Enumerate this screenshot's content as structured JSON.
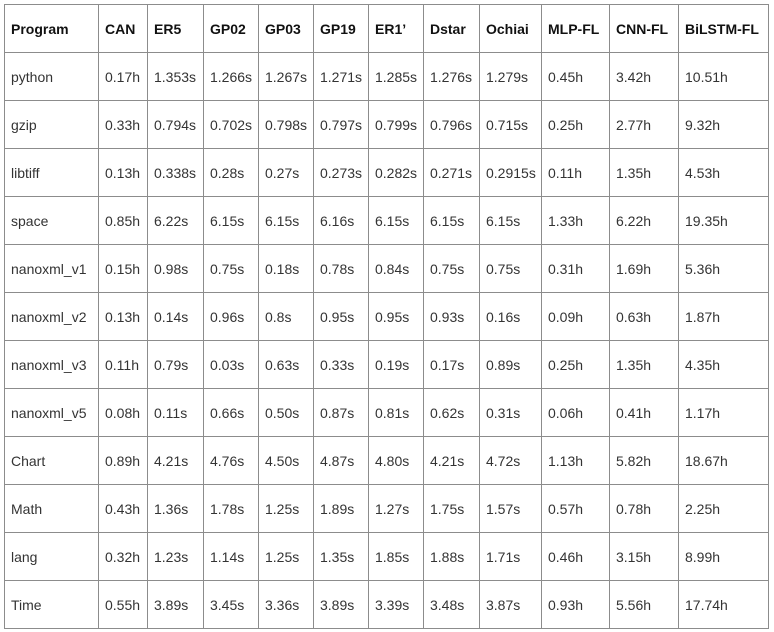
{
  "table": {
    "headers": [
      "Program",
      "CAN",
      "ER5",
      "GP02",
      "GP03",
      "GP19",
      "ER1’",
      "Dstar",
      "Ochiai",
      "MLP-FL",
      "CNN-FL",
      "BiLSTM-FL"
    ],
    "rows": [
      [
        "python",
        "0.17h",
        "1.353s",
        "1.266s",
        "1.267s",
        "1.271s",
        "1.285s",
        "1.276s",
        "1.279s",
        "0.45h",
        "3.42h",
        "10.51h"
      ],
      [
        "gzip",
        "0.33h",
        "0.794s",
        "0.702s",
        "0.798s",
        "0.797s",
        "0.799s",
        "0.796s",
        "0.715s",
        "0.25h",
        "2.77h",
        "9.32h"
      ],
      [
        "libtiff",
        "0.13h",
        "0.338s",
        "0.28s",
        "0.27s",
        "0.273s",
        "0.282s",
        "0.271s",
        "0.2915s",
        "0.11h",
        "1.35h",
        "4.53h"
      ],
      [
        "space",
        "0.85h",
        "6.22s",
        "6.15s",
        "6.15s",
        "6.16s",
        "6.15s",
        "6.15s",
        "6.15s",
        "1.33h",
        "6.22h",
        "19.35h"
      ],
      [
        "nanoxml_v1",
        "0.15h",
        "0.98s",
        "0.75s",
        "0.18s",
        "0.78s",
        "0.84s",
        "0.75s",
        "0.75s",
        "0.31h",
        "1.69h",
        "5.36h"
      ],
      [
        "nanoxml_v2",
        "0.13h",
        "0.14s",
        "0.96s",
        "0.8s",
        "0.95s",
        "0.95s",
        "0.93s",
        "0.16s",
        "0.09h",
        "0.63h",
        "1.87h"
      ],
      [
        "nanoxml_v3",
        "0.11h",
        "0.79s",
        "0.03s",
        "0.63s",
        "0.33s",
        "0.19s",
        "0.17s",
        "0.89s",
        "0.25h",
        "1.35h",
        "4.35h"
      ],
      [
        "nanoxml_v5",
        "0.08h",
        "0.11s",
        "0.66s",
        "0.50s",
        "0.87s",
        "0.81s",
        "0.62s",
        "0.31s",
        "0.06h",
        "0.41h",
        "1.17h"
      ],
      [
        "Chart",
        "0.89h",
        "4.21s",
        "4.76s",
        "4.50s",
        "4.87s",
        "4.80s",
        "4.21s",
        "4.72s",
        "1.13h",
        "5.82h",
        "18.67h"
      ],
      [
        "Math",
        "0.43h",
        "1.36s",
        "1.78s",
        "1.25s",
        "1.89s",
        "1.27s",
        "1.75s",
        "1.57s",
        "0.57h",
        "0.78h",
        "2.25h"
      ],
      [
        "lang",
        "0.32h",
        "1.23s",
        "1.14s",
        "1.25s",
        "1.35s",
        "1.85s",
        "1.88s",
        "1.71s",
        "0.46h",
        "3.15h",
        "8.99h"
      ],
      [
        "Time",
        "0.55h",
        "3.89s",
        "3.45s",
        "3.36s",
        "3.89s",
        "3.39s",
        "3.48s",
        "3.87s",
        "0.93h",
        "5.56h",
        "17.74h"
      ]
    ]
  }
}
